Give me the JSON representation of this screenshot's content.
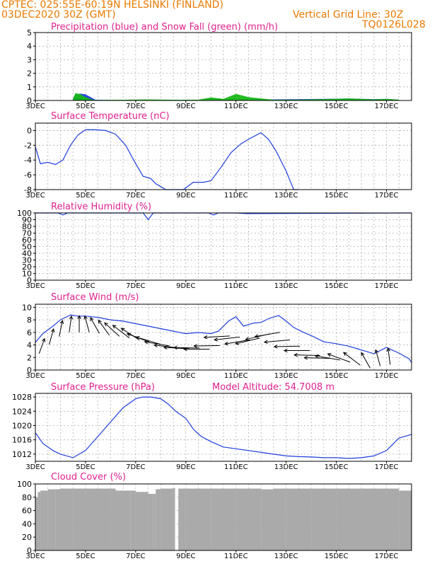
{
  "header": {
    "line1": "CPTEC:   025:55E-60:19N   HELSINKI (FINLAND)",
    "line2": "03DEC2020 30Z (GMT)",
    "grid_note": "Vertical Grid Line: 30Z",
    "code": "TQ0126L028"
  },
  "colors": {
    "orange": "#e87a00",
    "magenta": "#e0208f",
    "blue": "#1f3fdc",
    "green": "#17b817",
    "grey": "#aaaaaa",
    "grid": "#b0b0b0"
  },
  "x_tick_labels": [
    "3DEC",
    "5DEC",
    "7DEC",
    "9DEC",
    "11DEC",
    "13DEC",
    "15DEC",
    "17DEC"
  ],
  "chart_data": [
    {
      "type": "area",
      "title": "Precipitation (blue) and Snow Fall (green) (mm/h)",
      "ylim": [
        0,
        5
      ],
      "yticks": [
        0,
        1,
        2,
        3,
        4,
        5
      ],
      "series": [
        {
          "name": "Precipitation",
          "color": "#1f3fdc",
          "x": [
            4.5,
            4.6,
            4.8,
            5.0,
            5.2,
            5.4,
            6.5,
            7.5,
            8.5,
            9.5,
            10.0,
            10.5,
            11.0,
            11.5,
            12.5,
            13.5,
            14.5,
            15.5,
            16.5,
            17.0,
            17.5
          ],
          "values": [
            0.15,
            0.45,
            0.5,
            0.45,
            0.25,
            0.05,
            0.02,
            0.03,
            0.03,
            0.03,
            0.1,
            0.08,
            0.05,
            0.06,
            0.08,
            0.1,
            0.12,
            0.14,
            0.1,
            0.12,
            0.05
          ]
        },
        {
          "name": "Snow Fall",
          "color": "#17b817",
          "x": [
            4.5,
            4.6,
            4.8,
            5.0,
            5.2,
            5.4,
            6.5,
            7.5,
            8.5,
            9.5,
            10.0,
            10.5,
            11.0,
            11.5,
            12.5,
            13.5,
            14.5,
            15.5,
            16.5,
            17.0,
            17.5
          ],
          "values": [
            0.1,
            0.55,
            0.45,
            0.25,
            0.1,
            0.03,
            0.05,
            0.08,
            0.05,
            0.06,
            0.22,
            0.12,
            0.48,
            0.25,
            0.05,
            0.06,
            0.1,
            0.15,
            0.08,
            0.12,
            0.06
          ]
        }
      ]
    },
    {
      "type": "line",
      "title": "Surface Temperature (nC)",
      "ylim": [
        -8,
        1
      ],
      "yticks": [
        -8,
        -6,
        -4,
        -2,
        0
      ],
      "series": [
        {
          "name": "Surface Temperature",
          "color": "#1f3fdc",
          "x": [
            3.0,
            3.2,
            3.5,
            3.8,
            4.1,
            4.4,
            4.7,
            5.0,
            5.4,
            5.8,
            6.2,
            6.6,
            7.0,
            7.3,
            7.6,
            7.8,
            8.0,
            8.2,
            8.5,
            8.9,
            9.3,
            9.7,
            10.0,
            10.4,
            10.8,
            11.2,
            11.6,
            12.0,
            12.3,
            12.6,
            13.0,
            13.3,
            13.5
          ],
          "values": [
            -2.2,
            -4.5,
            -4.3,
            -4.6,
            -4.0,
            -2.0,
            -0.6,
            0.1,
            0.1,
            0.0,
            -0.5,
            -2.0,
            -4.5,
            -6.2,
            -6.5,
            -7.2,
            -7.6,
            -8.0,
            -8.0,
            -8.0,
            -7.0,
            -7.0,
            -6.8,
            -5.0,
            -3.0,
            -1.8,
            -1.0,
            -0.3,
            -1.2,
            -2.8,
            -5.5,
            -8.0,
            -8.0
          ]
        }
      ]
    },
    {
      "type": "line",
      "title": "Relative Humidity (%)",
      "ylim": [
        0,
        100
      ],
      "yticks": [
        0,
        10,
        20,
        30,
        40,
        50,
        60,
        70,
        80,
        90,
        100
      ],
      "series": [
        {
          "name": "Relative Humidity",
          "color": "#1f3fdc",
          "x": [
            3.0,
            3.9,
            4.1,
            4.3,
            7.3,
            7.5,
            7.7,
            9.9,
            10.1,
            10.3,
            11.0,
            11.4,
            18.0
          ],
          "values": [
            100,
            100,
            97,
            100,
            100,
            90,
            100,
            100,
            97,
            100,
            100,
            99,
            100
          ]
        }
      ]
    },
    {
      "type": "line",
      "title": "Surface Wind (m/s)",
      "ylim": [
        0,
        10.5
      ],
      "yticks": [
        0,
        2,
        4,
        6,
        8,
        10
      ],
      "series": [
        {
          "name": "Surface Wind",
          "color": "#1f3fdc",
          "x": [
            3.0,
            3.3,
            3.7,
            4.0,
            4.4,
            4.7,
            5.0,
            5.5,
            6.0,
            6.5,
            7.0,
            7.5,
            8.0,
            8.5,
            9.0,
            9.5,
            10.0,
            10.3,
            10.7,
            11.0,
            11.3,
            11.7,
            12.0,
            12.3,
            12.7,
            13.0,
            13.3,
            13.7,
            14.0,
            14.5,
            15.0,
            15.5,
            16.0,
            16.5,
            17.0,
            17.5,
            17.9,
            18.0
          ],
          "values": [
            4.4,
            5.8,
            7.0,
            8.0,
            8.8,
            8.6,
            8.6,
            8.4,
            8.0,
            7.8,
            7.4,
            7.0,
            6.6,
            6.2,
            5.8,
            6.0,
            5.8,
            6.2,
            7.8,
            8.5,
            7.0,
            7.5,
            7.6,
            8.2,
            8.7,
            7.8,
            6.8,
            6.0,
            5.5,
            4.5,
            4.2,
            3.8,
            3.2,
            2.6,
            3.6,
            2.7,
            1.8,
            1.2
          ]
        }
      ],
      "wind_dir_deg": [
        25,
        20,
        15,
        10,
        0,
        350,
        340,
        335,
        325,
        320,
        315,
        300,
        295,
        285,
        280,
        275,
        272,
        270,
        268,
        265,
        260,
        255,
        250,
        250,
        255,
        262,
        268,
        270,
        272,
        272,
        285,
        300,
        320,
        340,
        350,
        355
      ]
    },
    {
      "type": "line",
      "title": "Surface Pressure (hPa)",
      "subtitle": "Model Altitude: 54.7008 m",
      "ylim": [
        1010,
        1029
      ],
      "yticks": [
        1012,
        1016,
        1020,
        1024,
        1028
      ],
      "series": [
        {
          "name": "Surface Pressure",
          "color": "#1f3fdc",
          "x": [
            3.0,
            3.3,
            3.7,
            4.0,
            4.5,
            5.0,
            5.5,
            6.0,
            6.5,
            7.0,
            7.3,
            7.6,
            8.0,
            8.3,
            8.6,
            9.0,
            9.3,
            9.6,
            10.0,
            10.5,
            11.0,
            11.5,
            12.0,
            12.5,
            13.0,
            13.5,
            14.0,
            14.5,
            15.0,
            15.5,
            16.0,
            16.5,
            17.0,
            17.5,
            18.0
          ],
          "values": [
            1018,
            1015,
            1013,
            1012,
            1011,
            1013,
            1017,
            1021,
            1025,
            1027.5,
            1028,
            1028,
            1027.5,
            1026,
            1024,
            1022,
            1019,
            1017,
            1015.5,
            1014,
            1013.5,
            1013,
            1012.5,
            1012,
            1011.5,
            1011.3,
            1011.2,
            1011,
            1011,
            1010.8,
            1011,
            1011.5,
            1013,
            1016.5,
            1017.5
          ]
        }
      ]
    },
    {
      "type": "area",
      "title": "Cloud Cover (%)",
      "ylim": [
        0,
        100
      ],
      "yticks": [
        0,
        20,
        40,
        60,
        80,
        100
      ],
      "series": [
        {
          "name": "Cloud Cover",
          "color": "#aaaaaa",
          "x": [
            3.0,
            3.1,
            3.2,
            3.5,
            3.8,
            4.0,
            4.5,
            5.0,
            6.0,
            6.2,
            6.8,
            7.0,
            7.2,
            7.5,
            7.7,
            7.8,
            8.0,
            8.5,
            8.6,
            8.7,
            9.0,
            10.0,
            11.0,
            11.5,
            12.0,
            12.5,
            13.0,
            14.0,
            15.0,
            16.0,
            17.0,
            17.5,
            18.0
          ],
          "values": [
            80,
            88,
            90,
            92,
            92,
            93,
            93,
            93,
            93,
            90,
            90,
            88,
            88,
            85,
            85,
            92,
            93,
            94,
            0,
            93,
            93,
            93,
            93,
            93,
            92,
            93,
            93,
            93,
            93,
            93,
            93,
            90,
            92
          ]
        }
      ]
    }
  ]
}
